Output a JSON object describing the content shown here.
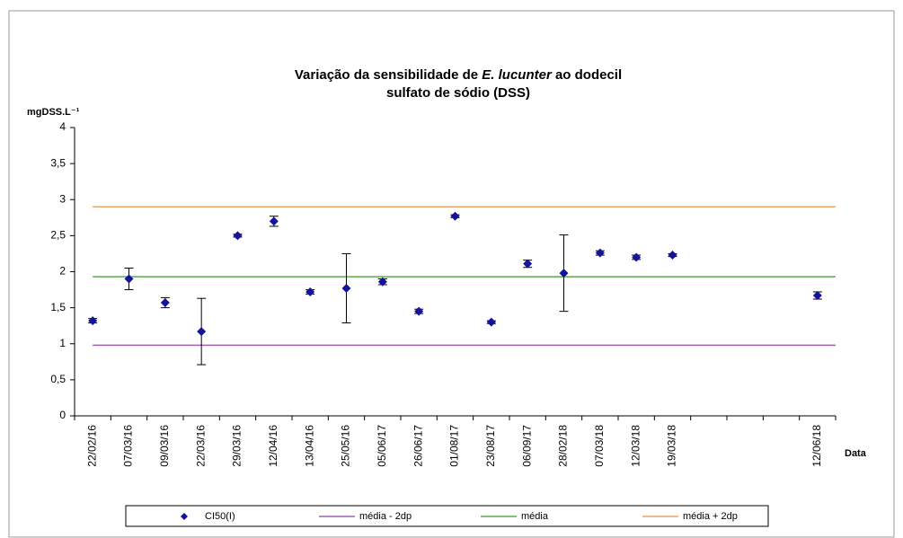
{
  "chart_data": {
    "type": "scatter",
    "title_line1": [
      "Variação da sensibilidade de ",
      "E. lucunter",
      " ao dodecil"
    ],
    "title_line2": "sulfato de sódio (DSS)",
    "y_label": "mgDSS.L⁻¹",
    "x_label": "Data",
    "categories": [
      "22/02/16",
      "07/03/16",
      "09/03/16",
      "22/03/16",
      "29/03/16",
      "12/04/16",
      "13/04/16",
      "25/05/16",
      "05/06/17",
      "26/06/17",
      "01/08/17",
      "23/08/17",
      "06/09/17",
      "28/02/18",
      "07/03/18",
      "12/03/18",
      "19/03/18",
      null,
      null,
      null,
      "12/06/18"
    ],
    "series": [
      {
        "name": "CI50(I)",
        "color": "#14149a",
        "values": [
          1.32,
          1.9,
          1.57,
          1.17,
          2.5,
          2.7,
          1.72,
          1.77,
          1.86,
          1.45,
          2.77,
          1.3,
          2.11,
          1.98,
          2.26,
          2.2,
          2.23,
          null,
          null,
          null,
          1.67
        ],
        "errors": [
          0.03,
          0.15,
          0.07,
          0.46,
          0.02,
          0.07,
          0.03,
          0.48,
          0.04,
          0.03,
          0.02,
          0.02,
          0.05,
          0.53,
          0.03,
          0.03,
          0.02,
          null,
          null,
          null,
          0.05
        ]
      }
    ],
    "reference_lines": [
      {
        "name": "média - 2dp",
        "color": "#9b62b0",
        "value": 0.98
      },
      {
        "name": "média",
        "color": "#5aac4e",
        "value": 1.93
      },
      {
        "name": "média + 2dp",
        "color": "#e8a466",
        "value": 2.9
      }
    ],
    "ylim": [
      0,
      4
    ],
    "yticks": [
      0,
      {
        "value": 0.5,
        "label": "0,5"
      },
      1,
      {
        "value": 1.5,
        "label": "1,5"
      },
      2,
      {
        "value": 2.5,
        "label": "2,5"
      },
      3,
      {
        "value": 3.5,
        "label": "3,5"
      },
      4
    ],
    "legend": "bottom"
  }
}
